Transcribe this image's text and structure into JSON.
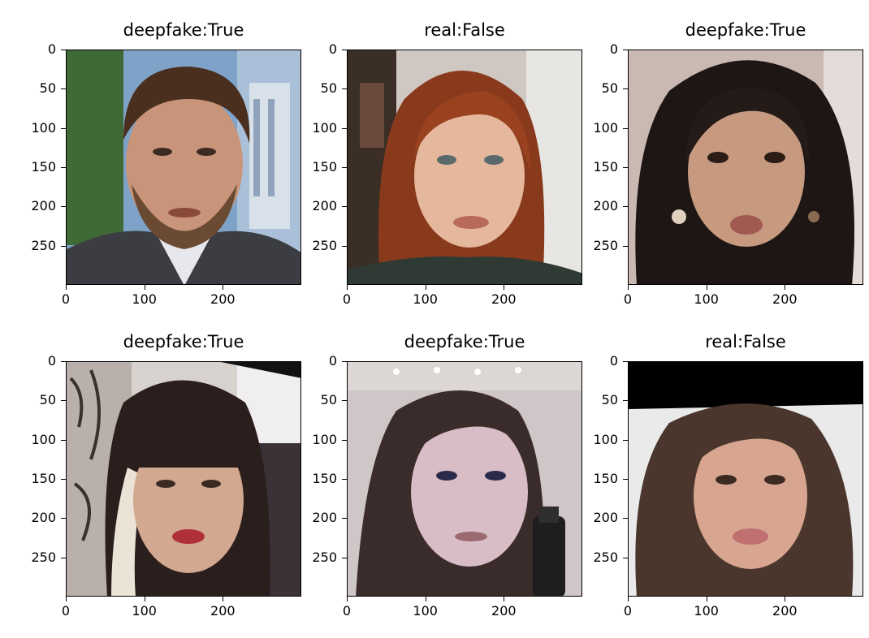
{
  "figure": {
    "panels": [
      {
        "title": "deepfake:True",
        "scene": "man-suit-outdoor"
      },
      {
        "title": "real:False",
        "scene": "woman-red-hair"
      },
      {
        "title": "deepfake:True",
        "scene": "woman-dark-hair-earrings"
      },
      {
        "title": "deepfake:True",
        "scene": "woman-bangs-two-tone"
      },
      {
        "title": "deepfake:True",
        "scene": "woman-brown-hair-bottle"
      },
      {
        "title": "real:False",
        "scene": "woman-long-hair-blackbar"
      }
    ],
    "y_ticks": [
      "0",
      "50",
      "100",
      "150",
      "200",
      "250"
    ],
    "y_tick_values": [
      0,
      50,
      100,
      150,
      200,
      250
    ],
    "x_ticks": [
      "0",
      "100",
      "200"
    ],
    "x_tick_values": [
      0,
      100,
      200
    ],
    "image_extent": 300,
    "colors": {
      "axes": "#000000",
      "background": "#ffffff"
    }
  }
}
